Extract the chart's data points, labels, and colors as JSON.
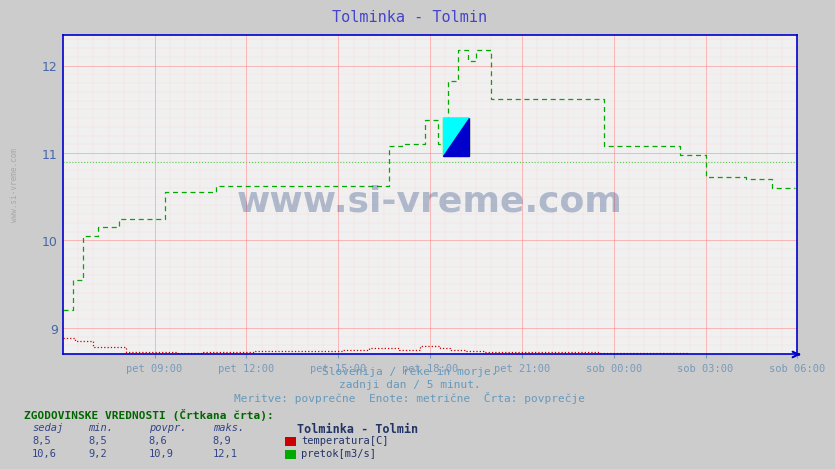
{
  "title": "Tolminka - Tolmin",
  "title_color": "#4444cc",
  "bg_color": "#cccccc",
  "plot_bg_color": "#f0f0f0",
  "grid_color_major": "#ff8888",
  "grid_color_minor": "#ffcccc",
  "xlabel_color": "#7799bb",
  "ylabel_color": "#4466aa",
  "axis_color": "#0000cc",
  "ylim": [
    8.7,
    12.35
  ],
  "yticks": [
    9,
    10,
    11,
    12
  ],
  "xtick_labels": [
    "pet 09:00",
    "pet 12:00",
    "pet 15:00",
    "pet 18:00",
    "pet 21:00",
    "sob 00:00",
    "sob 03:00",
    "sob 06:00"
  ],
  "subtitle1": "Slovenija / reke in morje.",
  "subtitle2": "zadnji dan / 5 minut.",
  "subtitle3": "Meritve: povprečne  Enote: metrične  Črta: povprečje",
  "watermark": "www.si-vreme.com",
  "temp_avg": 8.6,
  "flow_avg": 10.9,
  "legend_title": "Tolminka - Tolmin",
  "legend_temp": "temperatura[C]",
  "legend_flow": "pretok[m3/s]",
  "hist_label": "ZGODOVINSKE VREDNOSTI (Črtkana črta):",
  "hist_headers": [
    "sedaj",
    "min.",
    "povpr.",
    "maks."
  ],
  "hist_temp": [
    8.5,
    8.5,
    8.6,
    8.9
  ],
  "hist_flow": [
    10.6,
    9.2,
    10.9,
    12.1
  ],
  "temp_color": "#cc0000",
  "flow_color": "#00aa00",
  "dashed_color_temp": "#ff4444",
  "dashed_color_flow": "#44cc44",
  "n_points": 288
}
